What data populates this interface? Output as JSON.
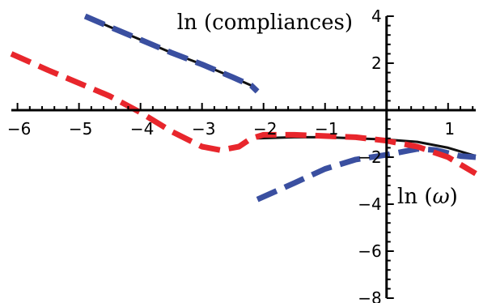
{
  "chart_data": {
    "type": "line",
    "xlabel_prefix": "ln (",
    "xlabel_var": "ω",
    "xlabel_suffix": ")",
    "ylabel": "ln (compliances)",
    "xlim": [
      -6.1,
      1.45
    ],
    "ylim": [
      -8.0,
      4.0
    ],
    "x_ticks": [
      -6,
      -5,
      -4,
      -3,
      -2,
      -1,
      1
    ],
    "y_ticks": [
      4,
      2,
      -2,
      -4,
      -6,
      -8
    ],
    "grid": false,
    "legend": "none",
    "series": [
      {
        "style": "solid",
        "color": "#111111",
        "segments": [
          [
            [
              -4.9,
              4.0
            ],
            [
              -4.5,
              3.55
            ],
            [
              -4.0,
              3.0
            ],
            [
              -3.5,
              2.45
            ],
            [
              -3.0,
              1.95
            ],
            [
              -2.5,
              1.4
            ],
            [
              -2.2,
              1.05
            ],
            [
              -2.1,
              0.8
            ]
          ],
          [
            [
              -2.1,
              -1.2
            ],
            [
              -1.5,
              -1.15
            ],
            [
              -1.0,
              -1.15
            ],
            [
              -0.5,
              -1.2
            ],
            [
              0.0,
              -1.25
            ],
            [
              0.5,
              -1.35
            ],
            [
              1.0,
              -1.6
            ],
            [
              1.45,
              -1.95
            ]
          ]
        ]
      },
      {
        "style": "dashed",
        "color": "#3a4fa0",
        "segments": [
          [
            [
              -4.9,
              4.0
            ],
            [
              -4.5,
              3.55
            ],
            [
              -4.0,
              3.0
            ],
            [
              -3.5,
              2.45
            ],
            [
              -3.0,
              1.95
            ],
            [
              -2.5,
              1.4
            ],
            [
              -2.2,
              1.05
            ],
            [
              -2.1,
              0.8
            ]
          ],
          [
            [
              -2.1,
              -3.8
            ],
            [
              -1.5,
              -3.1
            ],
            [
              -1.0,
              -2.5
            ],
            [
              -0.5,
              -2.1
            ],
            [
              0.0,
              -1.9
            ],
            [
              0.5,
              -1.65
            ],
            [
              0.8,
              -1.7
            ],
            [
              1.2,
              -1.95
            ],
            [
              1.45,
              -2.0
            ]
          ]
        ]
      },
      {
        "style": "dashed",
        "color": "#e8262c",
        "segments": [
          [
            [
              -6.1,
              2.4
            ],
            [
              -5.5,
              1.7
            ],
            [
              -5.0,
              1.15
            ],
            [
              -4.5,
              0.6
            ],
            [
              -4.0,
              -0.1
            ],
            [
              -3.5,
              -0.9
            ],
            [
              -3.0,
              -1.55
            ],
            [
              -2.7,
              -1.7
            ],
            [
              -2.4,
              -1.55
            ],
            [
              -2.2,
              -1.2
            ],
            [
              -2.0,
              -1.05
            ],
            [
              -1.5,
              -1.05
            ],
            [
              -1.0,
              -1.1
            ],
            [
              -0.5,
              -1.15
            ],
            [
              0.0,
              -1.3
            ],
            [
              0.5,
              -1.55
            ],
            [
              1.0,
              -2.0
            ],
            [
              1.45,
              -2.7
            ]
          ]
        ]
      }
    ]
  }
}
